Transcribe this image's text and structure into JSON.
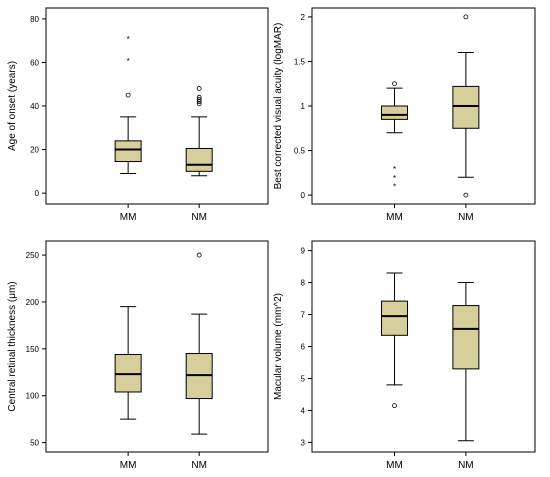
{
  "colors": {
    "box_fill": "#d7cf9b",
    "stroke": "#000000"
  },
  "chart_data": [
    {
      "type": "box",
      "ylabel": "Age of onset (years)",
      "categories": [
        "MM",
        "NM"
      ],
      "ylim": [
        -5,
        85
      ],
      "yticks": [
        0,
        20,
        40,
        60,
        80
      ],
      "tick_labels": [
        "0",
        "20",
        "40",
        "60",
        "80"
      ],
      "boxes": [
        {
          "category": "MM",
          "whisker_low": 9,
          "q1": 14.5,
          "median": 20,
          "q3": 24,
          "whisker_high": 35,
          "outliers": [
            {
              "value": 45,
              "marker": "circle"
            }
          ],
          "extremes": [
            {
              "value": 61,
              "marker": "star"
            },
            {
              "value": 71,
              "marker": "star"
            }
          ]
        },
        {
          "category": "NM",
          "whisker_low": 8,
          "q1": 10,
          "median": 13,
          "q3": 20.5,
          "whisker_high": 35,
          "outliers": [
            {
              "value": 41,
              "marker": "circle"
            },
            {
              "value": 42,
              "marker": "circle"
            },
            {
              "value": 43,
              "marker": "circle"
            },
            {
              "value": 44,
              "marker": "circle"
            },
            {
              "value": 48,
              "marker": "circle"
            }
          ],
          "extremes": []
        }
      ]
    },
    {
      "type": "box",
      "ylabel": "Best corrected visual acuity (logMAR)",
      "categories": [
        "MM",
        "NM"
      ],
      "ylim": [
        -0.1,
        2.1
      ],
      "yticks": [
        0,
        0.5,
        1,
        1.5,
        2
      ],
      "tick_labels": [
        "0",
        "0.5",
        "1",
        "1.5",
        "2"
      ],
      "boxes": [
        {
          "category": "MM",
          "whisker_low": 0.7,
          "q1": 0.85,
          "median": 0.9,
          "q3": 1.0,
          "whisker_high": 1.2,
          "outliers": [
            {
              "value": 1.25,
              "marker": "circle"
            }
          ],
          "extremes": [
            {
              "value": 0.1,
              "marker": "star"
            },
            {
              "value": 0.2,
              "marker": "star"
            },
            {
              "value": 0.3,
              "marker": "star"
            }
          ]
        },
        {
          "category": "NM",
          "whisker_low": 0.2,
          "q1": 0.75,
          "median": 1.0,
          "q3": 1.22,
          "whisker_high": 1.6,
          "outliers": [
            {
              "value": 2.0,
              "marker": "circle"
            },
            {
              "value": 0.0,
              "marker": "circle"
            }
          ],
          "extremes": []
        }
      ]
    },
    {
      "type": "box",
      "ylabel": "Central retinal thickness (μm)",
      "categories": [
        "MM",
        "NM"
      ],
      "ylim": [
        40,
        265
      ],
      "yticks": [
        50,
        100,
        150,
        200,
        250
      ],
      "tick_labels": [
        "50",
        "100",
        "150",
        "200",
        "250"
      ],
      "boxes": [
        {
          "category": "MM",
          "whisker_low": 75,
          "q1": 104,
          "median": 123,
          "q3": 144,
          "whisker_high": 195,
          "outliers": [],
          "extremes": []
        },
        {
          "category": "NM",
          "whisker_low": 59,
          "q1": 97,
          "median": 122,
          "q3": 145,
          "whisker_high": 187,
          "outliers": [
            {
              "value": 250,
              "marker": "circle"
            }
          ],
          "extremes": []
        }
      ]
    },
    {
      "type": "box",
      "ylabel": "Macular volume (mm^2)",
      "categories": [
        "MM",
        "NM"
      ],
      "ylim": [
        2.7,
        9.3
      ],
      "yticks": [
        3,
        4,
        5,
        6,
        7,
        8,
        9
      ],
      "tick_labels": [
        "3",
        "4",
        "5",
        "6",
        "7",
        "8",
        "9"
      ],
      "boxes": [
        {
          "category": "MM",
          "whisker_low": 4.8,
          "q1": 6.35,
          "median": 6.95,
          "q3": 7.42,
          "whisker_high": 8.3,
          "outliers": [
            {
              "value": 4.15,
              "marker": "circle"
            }
          ],
          "extremes": []
        },
        {
          "category": "NM",
          "whisker_low": 3.05,
          "q1": 5.3,
          "median": 6.55,
          "q3": 7.28,
          "whisker_high": 8.0,
          "outliers": [],
          "extremes": []
        }
      ]
    }
  ]
}
